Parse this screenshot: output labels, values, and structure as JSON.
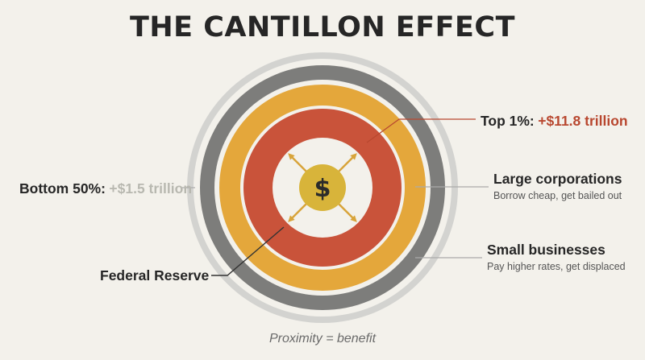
{
  "title": "THE CANTILLON EFFECT",
  "center_symbol": "$",
  "labels": {
    "top1": {
      "prefix": "Top 1%:",
      "value": "+$11.8 trillion"
    },
    "bottom50": {
      "prefix": "Bottom 50%:",
      "value": "+$1.5 trillion"
    },
    "large_corps": {
      "title": "Large corporations",
      "subtitle": "Borrow cheap, get bailed out"
    },
    "small_biz": {
      "title": "Small businesses",
      "subtitle": "Pay higher rates, get displaced"
    },
    "fed": {
      "title": "Federal Reserve"
    }
  },
  "caption": "Proximity = benefit",
  "colors": {
    "background": "#f3f1eb",
    "outer_ring_light": "#d3d3d0",
    "outer_ring_dark": "#7d7d7b",
    "orange_ring": "#e4a73b",
    "red_ring": "#c9533a",
    "center_disk": "#d8b43a",
    "accent_red": "#b8472f",
    "muted_grey": "#b8b8b0"
  }
}
